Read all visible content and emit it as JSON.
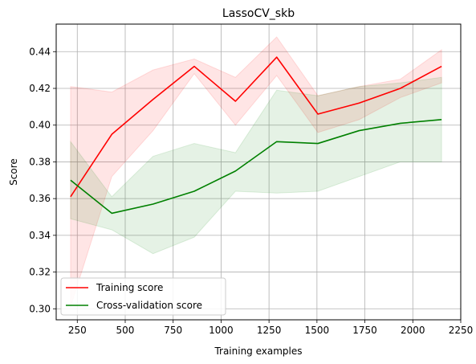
{
  "chart_data": {
    "type": "line",
    "title": "LassoCV_skb",
    "xlabel": "Training examples",
    "ylabel": "Score",
    "xlim": [
      140,
      2250
    ],
    "ylim": [
      0.294,
      0.455
    ],
    "grid": true,
    "legend_position": "lower-left",
    "x_ticks": [
      250,
      500,
      750,
      1000,
      1250,
      1500,
      1750,
      2000,
      2250
    ],
    "y_ticks": [
      0.3,
      0.32,
      0.34,
      0.36,
      0.38,
      0.4,
      0.42,
      0.44
    ],
    "x": [
      215,
      430,
      645,
      860,
      1075,
      1290,
      1505,
      1720,
      1935,
      2150
    ],
    "series": [
      {
        "name": "Training score",
        "color": "#ff0000",
        "values": [
          0.361,
          0.395,
          0.414,
          0.432,
          0.413,
          0.437,
          0.406,
          0.412,
          0.42,
          0.432
        ],
        "band_upper": [
          0.421,
          0.418,
          0.43,
          0.436,
          0.426,
          0.448,
          0.416,
          0.421,
          0.425,
          0.441
        ],
        "band_lower": [
          0.301,
          0.372,
          0.397,
          0.428,
          0.4,
          0.427,
          0.396,
          0.403,
          0.415,
          0.423
        ],
        "band_color": "#ff0000"
      },
      {
        "name": "Cross-validation score",
        "color": "#008000",
        "values": [
          0.37,
          0.352,
          0.357,
          0.364,
          0.375,
          0.391,
          0.39,
          0.397,
          0.401,
          0.403
        ],
        "band_upper": [
          0.391,
          0.361,
          0.383,
          0.39,
          0.385,
          0.419,
          0.416,
          0.421,
          0.423,
          0.426
        ],
        "band_lower": [
          0.349,
          0.343,
          0.33,
          0.339,
          0.364,
          0.363,
          0.364,
          0.372,
          0.38,
          0.38
        ],
        "band_color": "#008000"
      }
    ]
  }
}
